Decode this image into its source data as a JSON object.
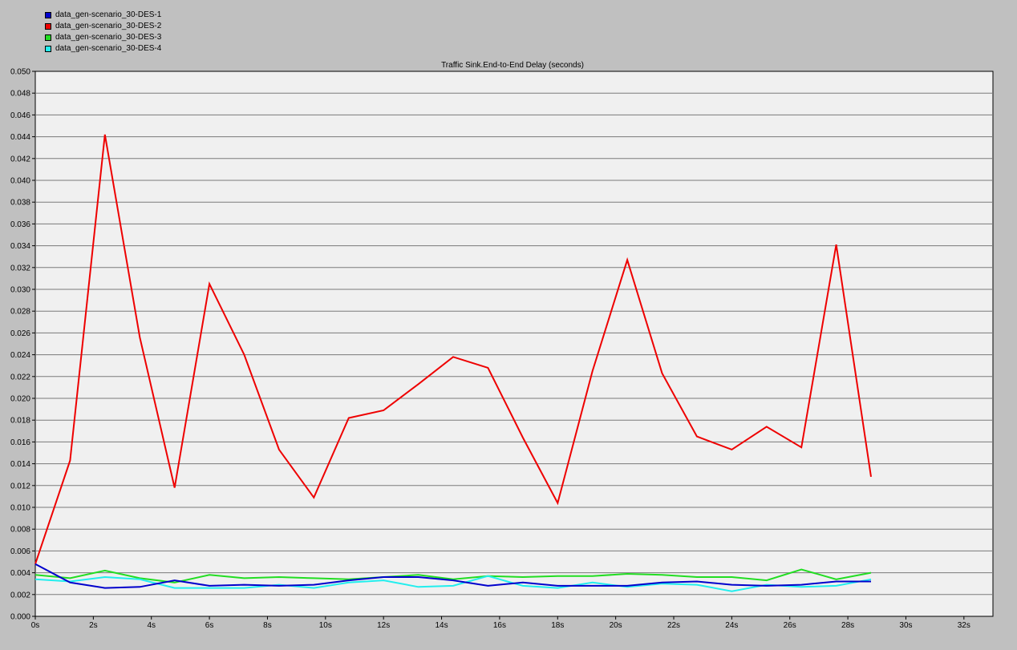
{
  "chart_data": {
    "type": "line",
    "title": "Traffic Sink.End-to-End Delay (seconds)",
    "xlabel": "",
    "ylabel": "",
    "xlim": [
      0,
      33
    ],
    "ylim": [
      0,
      0.05
    ],
    "x_ticks": [
      "0s",
      "2s",
      "4s",
      "6s",
      "8s",
      "10s",
      "12s",
      "14s",
      "16s",
      "18s",
      "20s",
      "22s",
      "24s",
      "26s",
      "28s",
      "30s",
      "32s"
    ],
    "y_ticks": [
      "0.000",
      "0.002",
      "0.004",
      "0.006",
      "0.008",
      "0.010",
      "0.012",
      "0.014",
      "0.016",
      "0.018",
      "0.020",
      "0.022",
      "0.024",
      "0.026",
      "0.028",
      "0.030",
      "0.032",
      "0.034",
      "0.036",
      "0.038",
      "0.040",
      "0.042",
      "0.044",
      "0.046",
      "0.048",
      "0.050"
    ],
    "grid": "horizontal",
    "legend_position": "top-left",
    "x": [
      0,
      1.2,
      2.4,
      3.6,
      4.8,
      6.0,
      7.2,
      8.4,
      9.6,
      10.8,
      12.0,
      13.2,
      14.4,
      15.6,
      16.8,
      18.0,
      19.2,
      20.4,
      21.6,
      22.8,
      24.0,
      25.2,
      26.4,
      27.6,
      28.8
    ],
    "series": [
      {
        "name": "data_gen-scenario_30-DES-1",
        "color": "#0000cc",
        "values": [
          0.0048,
          0.0031,
          0.0026,
          0.0027,
          0.0033,
          0.0028,
          0.0029,
          0.0028,
          0.0029,
          0.0033,
          0.0036,
          0.0036,
          0.0033,
          0.0028,
          0.0031,
          0.0028,
          0.0028,
          0.0028,
          0.0031,
          0.0032,
          0.0029,
          0.0028,
          0.0029,
          0.0032,
          0.0032
        ]
      },
      {
        "name": "data_gen-scenario_30-DES-2",
        "color": "#ee0000",
        "values": [
          0.0048,
          0.0143,
          0.0442,
          0.0256,
          0.0118,
          0.0305,
          0.024,
          0.0153,
          0.0109,
          0.0182,
          0.0189,
          0.0213,
          0.0238,
          0.0228,
          0.0164,
          0.0104,
          0.0225,
          0.0327,
          0.0223,
          0.0165,
          0.0153,
          0.0174,
          0.0155,
          0.0341,
          0.0128
        ]
      },
      {
        "name": "data_gen-scenario_30-DES-3",
        "color": "#22dd22",
        "values": [
          0.0038,
          0.0035,
          0.0042,
          0.0035,
          0.0031,
          0.0038,
          0.0035,
          0.0036,
          0.0035,
          0.0034,
          0.0036,
          0.0038,
          0.0034,
          0.0037,
          0.0036,
          0.0037,
          0.0037,
          0.0039,
          0.0038,
          0.0036,
          0.0036,
          0.0033,
          0.0043,
          0.0034,
          0.004
        ]
      },
      {
        "name": "data_gen-scenario_30-DES-4",
        "color": "#22eeee",
        "values": [
          0.0034,
          0.0032,
          0.0036,
          0.0034,
          0.0026,
          0.0026,
          0.0026,
          0.0029,
          0.0026,
          0.0031,
          0.0033,
          0.0027,
          0.0028,
          0.0037,
          0.0028,
          0.0026,
          0.0031,
          0.0027,
          0.003,
          0.0029,
          0.0023,
          0.0029,
          0.0027,
          0.0028,
          0.0034
        ]
      }
    ]
  }
}
